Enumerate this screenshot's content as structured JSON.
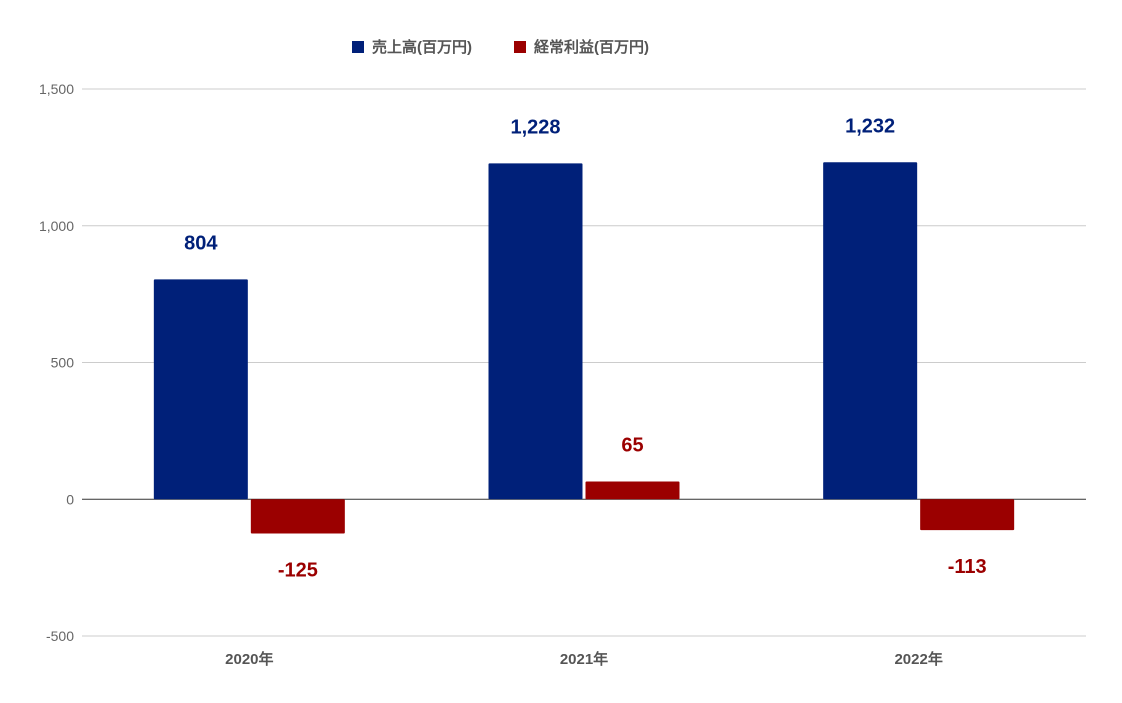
{
  "chart_data": {
    "type": "bar",
    "categories": [
      "2020年",
      "2021年",
      "2022年"
    ],
    "series": [
      {
        "name": "売上高(百万円)",
        "values": [
          804,
          1228,
          1232
        ],
        "color": "#002079"
      },
      {
        "name": "経常利益(百万円)",
        "values": [
          -125,
          65,
          -113
        ],
        "color": "#9b0000"
      }
    ],
    "yticks": [
      "1,500",
      "1,000",
      "500",
      "0",
      "-500"
    ],
    "ytick_values": [
      1500,
      1000,
      500,
      0,
      -500
    ],
    "ylim": [
      -500,
      1500
    ],
    "data_labels": [
      [
        "804",
        "1,228",
        "1,232"
      ],
      [
        "-125",
        "65",
        "-113"
      ]
    ],
    "grid": true,
    "legend_position": "top-center",
    "title": "",
    "xlabel": "",
    "ylabel": ""
  }
}
